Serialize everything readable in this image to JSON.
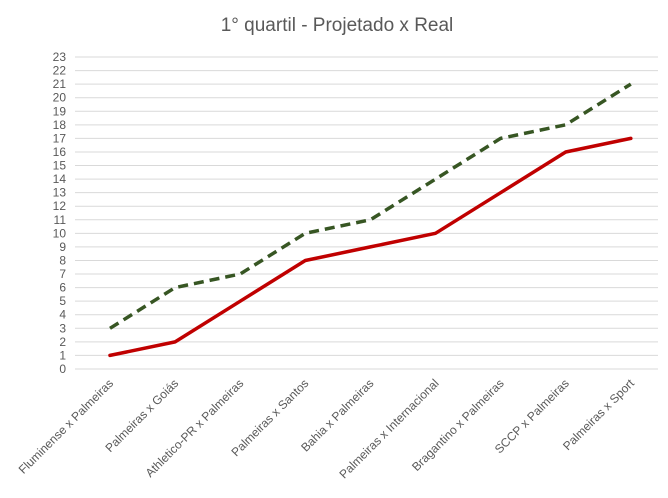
{
  "chart_data": {
    "type": "line",
    "title": "1° quartil - Projetado x Real",
    "xlabel": "",
    "ylabel": "",
    "categories": [
      "Fluminense x Palmeiras",
      "Palmeiras x Goiás",
      "Athletico-PR x Palmeiras",
      "Palmeiras x Santos",
      "Bahia x Palmeiras",
      "Palmeiras x Internacional",
      "Bragantino x Palmeiras",
      "SCCP x Palmeiras",
      "Palmeiras x Sport"
    ],
    "series": [
      {
        "values": [
          3,
          6,
          7,
          10,
          11,
          14,
          17,
          18,
          21
        ],
        "color": "#375623",
        "style": "dashed"
      },
      {
        "values": [
          1,
          2,
          5,
          8,
          9,
          10,
          13,
          16,
          17
        ],
        "color": "#c00000",
        "style": "solid"
      }
    ],
    "ylim": [
      0,
      23
    ],
    "ytick_step": 1,
    "grid": true,
    "legend": "none"
  }
}
